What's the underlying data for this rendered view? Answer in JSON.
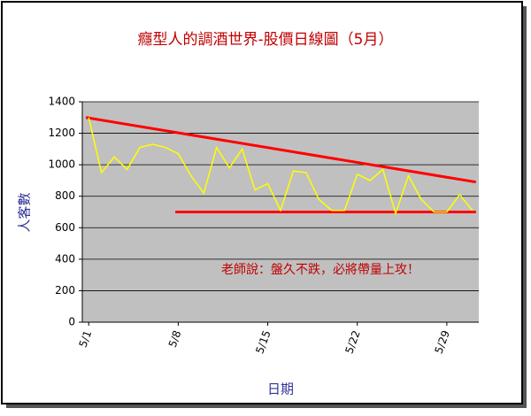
{
  "chart_data": {
    "type": "line",
    "title": "癮型人的調酒世界-股價日線圖（5月）",
    "x_label": "日期",
    "y_label": "人客數",
    "categories": [
      "5/1",
      null,
      null,
      null,
      null,
      null,
      null,
      "5/8",
      null,
      null,
      null,
      null,
      null,
      null,
      "5/15",
      null,
      null,
      null,
      null,
      null,
      null,
      "5/22",
      null,
      null,
      null,
      null,
      null,
      null,
      "5/29",
      null,
      null
    ],
    "series": [
      {
        "color": "#ffff00",
        "values": [
          1300,
          950,
          1050,
          970,
          1110,
          1130,
          1110,
          1070,
          930,
          820,
          1110,
          980,
          1100,
          840,
          880,
          710,
          960,
          950,
          780,
          710,
          710,
          940,
          900,
          970,
          690,
          930,
          780,
          700,
          700,
          810,
          710
        ]
      }
    ],
    "trend_lines": [
      {
        "color": "#ff0000",
        "from": [
          0,
          1300
        ],
        "to": [
          30,
          890
        ]
      },
      {
        "color": "#ff0000",
        "from": [
          7,
          700
        ],
        "to": [
          30,
          700
        ]
      }
    ],
    "annotation": "老師說：盤久不跌，必將帶量上攻！",
    "ylim": [
      0,
      1400
    ],
    "yticks": [
      0,
      200,
      400,
      600,
      800,
      1000,
      1200,
      1400
    ],
    "grid": true
  }
}
